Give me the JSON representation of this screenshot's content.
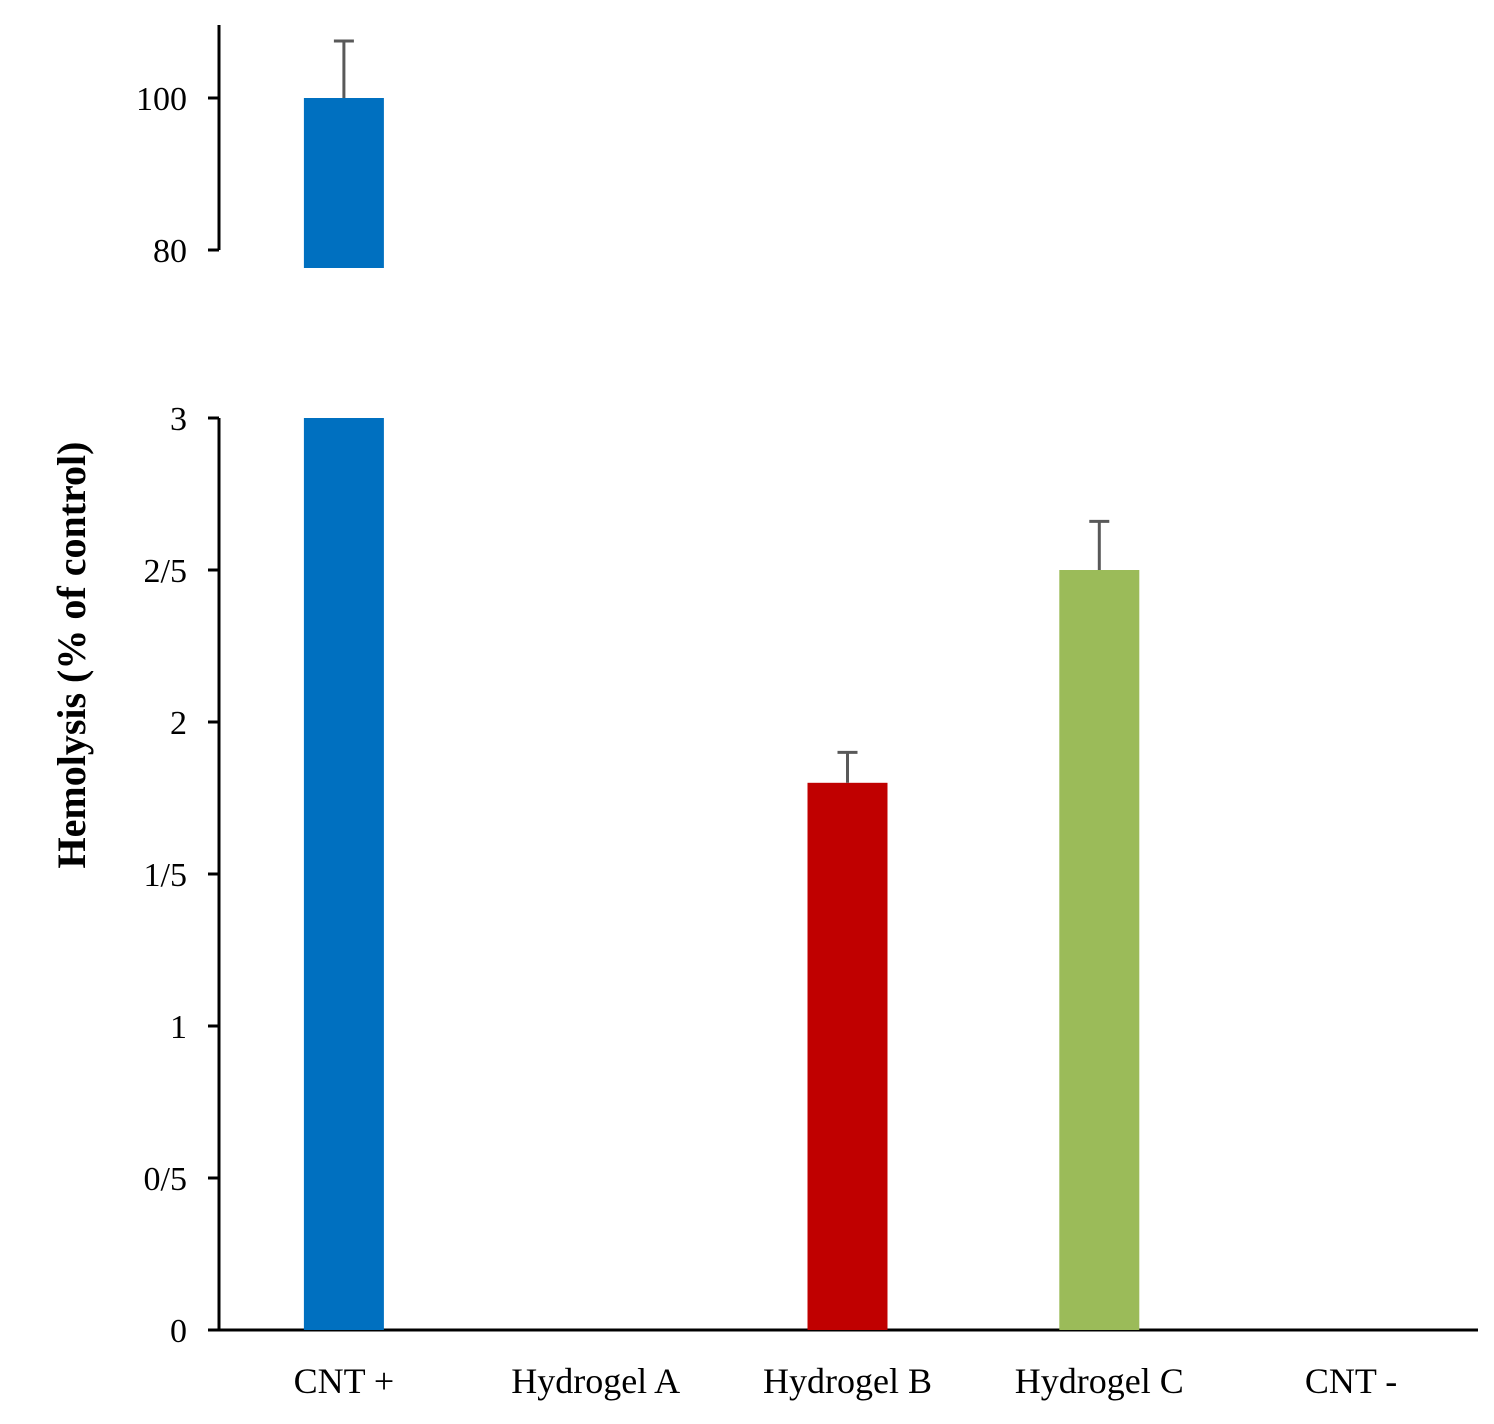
{
  "chart_data": {
    "type": "bar",
    "title": "",
    "xlabel": "",
    "ylabel": "Hemolysis (% of control)",
    "axis_break": true,
    "upper_segment": {
      "ylim": [
        80,
        100
      ],
      "ticks": [
        "80",
        "100"
      ]
    },
    "lower_segment": {
      "ylim": [
        0,
        3
      ],
      "ticks": [
        "0",
        "0/5",
        "1",
        "1/5",
        "2",
        "2/5",
        "3"
      ]
    },
    "categories": [
      "CNT +",
      "Hydrogel A",
      "Hydrogel B",
      "Hydrogel C",
      "CNT -"
    ],
    "values": [
      100,
      0,
      1.8,
      2.5,
      0
    ],
    "errors": [
      7.5,
      0,
      0.1,
      0.16,
      0
    ],
    "colors": [
      "#0070C0",
      "#C00000",
      "#C00000",
      "#9BBB59",
      "#0070C0"
    ],
    "error_bar_color": "#595959",
    "grid": false,
    "legend": "none"
  }
}
